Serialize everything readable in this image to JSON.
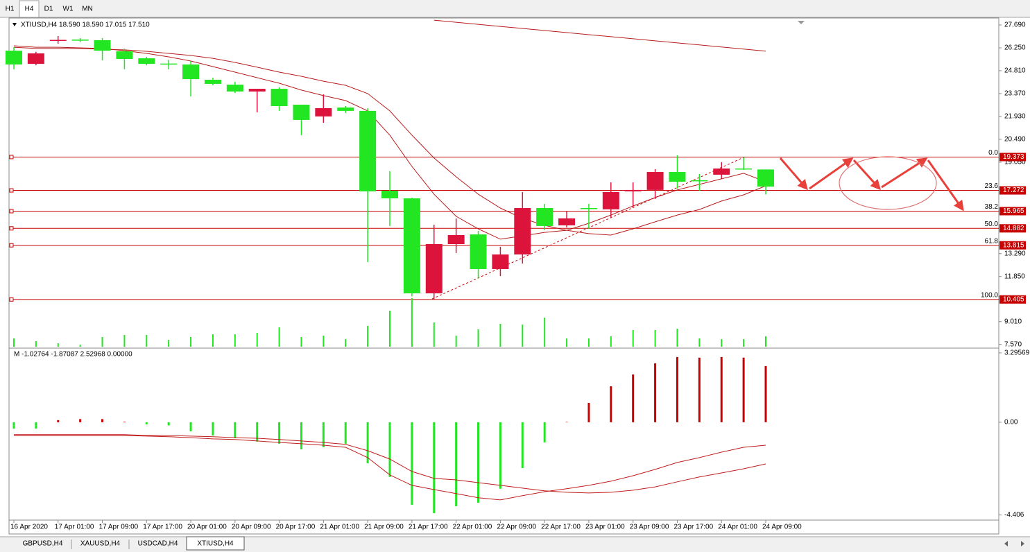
{
  "toolbar": {
    "timeframes": [
      "H1",
      "H4",
      "D1",
      "W1",
      "MN"
    ],
    "active": 1
  },
  "tabs": {
    "items": [
      "GBPUSD,H4",
      "XAUUSD,H4",
      "USDCAD,H4",
      "XTIUSD,H4"
    ],
    "active": 3
  },
  "chart_data": [
    {
      "type": "candlestick",
      "title": "XTIUSD,H4  18.590 18.590 17.015 17.510",
      "categories": [
        "16 Apr 2020",
        null,
        "17 Apr 01:00",
        null,
        "17 Apr 09:00",
        null,
        "17 Apr 17:00",
        null,
        "20 Apr 01:00",
        null,
        "20 Apr 09:00",
        null,
        "20 Apr 17:00",
        null,
        "21 Apr 01:00",
        null,
        "21 Apr 09:00",
        null,
        "21 Apr 17:00",
        null,
        "22 Apr 01:00",
        null,
        "22 Apr 09:00",
        null,
        "22 Apr 17:00",
        null,
        "23 Apr 01:00",
        null,
        "23 Apr 09:00",
        null,
        "23 Apr 17:00",
        null,
        "24 Apr 01:00",
        null,
        "24 Apr 09:00"
      ],
      "open": [
        26.07,
        25.24,
        26.71,
        26.77,
        26.73,
        26.03,
        25.59,
        25.26,
        25.2,
        24.24,
        23.93,
        23.5,
        23.67,
        22.67,
        21.93,
        22.49,
        22.28,
        17.25,
        16.77,
        10.79,
        13.89,
        14.5,
        12.32,
        13.24,
        16.16,
        15.07,
        16.16,
        16.08,
        17.21,
        17.3,
        18.43,
        17.91,
        18.26,
        18.65,
        18.59
      ],
      "high": [
        26.29,
        26.0,
        26.99,
        26.86,
        26.86,
        26.2,
        25.68,
        25.5,
        25.42,
        24.37,
        24.11,
        23.67,
        23.76,
        22.67,
        23.32,
        22.58,
        22.45,
        18.48,
        16.81,
        15.11,
        15.5,
        14.72,
        13.72,
        17.17,
        16.42,
        15.94,
        16.42,
        17.78,
        17.78,
        18.61,
        19.48,
        18.3,
        19.05,
        19.37,
        18.59
      ],
      "low": [
        24.9,
        25.15,
        26.51,
        26.6,
        25.46,
        24.9,
        25.15,
        24.9,
        23.19,
        23.89,
        23.41,
        22.19,
        22.28,
        20.75,
        21.53,
        22.15,
        12.76,
        15.03,
        10.6,
        10.405,
        13.33,
        11.71,
        11.88,
        12.67,
        14.77,
        14.94,
        14.85,
        15.55,
        16.16,
        16.73,
        17.39,
        17.26,
        17.99,
        18.56,
        17.015
      ],
      "close": [
        25.2,
        25.9,
        26.75,
        26.7,
        26.07,
        25.55,
        25.24,
        25.2,
        24.28,
        23.98,
        23.5,
        23.67,
        22.58,
        21.71,
        22.45,
        22.28,
        17.21,
        16.77,
        10.79,
        13.89,
        14.46,
        12.32,
        13.24,
        16.16,
        15.03,
        15.51,
        16.12,
        17.17,
        17.3,
        18.43,
        17.82,
        17.87,
        18.65,
        18.61,
        17.51
      ],
      "bull_color": "#dc143c",
      "bear_color": "#22e622",
      "volume": [
        12,
        8,
        5,
        3,
        14,
        17,
        17,
        10,
        14,
        18,
        18,
        20,
        28,
        14,
        16,
        11,
        30,
        52,
        70,
        35,
        16,
        25,
        33,
        32,
        42,
        12,
        12,
        15,
        24,
        24,
        26,
        12,
        11,
        11,
        15
      ],
      "volume_color": "#22e622",
      "volume_ylim": [
        0,
        100
      ],
      "moving_averages": [
        {
          "color": "#b81c1c",
          "values": [
            26.38,
            26.29,
            26.29,
            26.25,
            26.21,
            26.07,
            25.9,
            25.68,
            25.42,
            25.07,
            24.72,
            24.37,
            24.02,
            23.59,
            23.24,
            22.93,
            22.28,
            20.75,
            18.78,
            17.03,
            15.64,
            14.85,
            14.2,
            14.41,
            14.63,
            14.76,
            15.2,
            15.72,
            16.29,
            16.82,
            17.3,
            17.65,
            18.0,
            18.35,
            17.82
          ]
        },
        {
          "color": "#b81c1c",
          "values": [
            26.29,
            26.21,
            26.21,
            26.21,
            26.16,
            26.12,
            26.03,
            25.9,
            25.77,
            25.59,
            25.33,
            25.03,
            24.72,
            24.46,
            24.15,
            23.89,
            23.37,
            22.28,
            20.75,
            19.31,
            18.13,
            17.03,
            16.16,
            15.51,
            15.07,
            14.76,
            14.55,
            14.46,
            14.85,
            15.29,
            15.72,
            16.07,
            16.6,
            16.99,
            17.56
          ]
        },
        {
          "color": "#b81c1c",
          "values": [
            null,
            null,
            null,
            null,
            null,
            null,
            null,
            null,
            null,
            null,
            null,
            null,
            null,
            null,
            null,
            null,
            null,
            null,
            null,
            27.99,
            27.86,
            27.73,
            27.6,
            27.47,
            27.34,
            27.21,
            27.08,
            26.95,
            26.82,
            26.69,
            26.56,
            26.43,
            26.3,
            26.17,
            26.04
          ]
        }
      ],
      "fibonacci": [
        {
          "label": "0.0",
          "value": 19.373
        },
        {
          "label": "23.6",
          "value": 17.272
        },
        {
          "label": "38.2",
          "value": 15.965
        },
        {
          "label": "50.0",
          "value": 14.882
        },
        {
          "label": "61.8",
          "value": 13.815
        },
        {
          "label": "100.0",
          "value": 10.405
        }
      ],
      "fib_color": "#c80000",
      "ylim": [
        7.34,
        28.17
      ],
      "yticks": [
        {
          "value": 27.69,
          "label": "27.690"
        },
        {
          "value": 26.25,
          "label": "26.250"
        },
        {
          "value": 24.81,
          "label": "24.810"
        },
        {
          "value": 23.37,
          "label": "23.370"
        },
        {
          "value": 21.93,
          "label": "21.930"
        },
        {
          "value": 20.49,
          "label": "20.490"
        },
        {
          "value": 19.05,
          "label": "19.050"
        },
        {
          "value": 13.29,
          "label": "13.290"
        },
        {
          "value": 11.85,
          "label": "11.850"
        },
        {
          "value": 9.01,
          "label": "9.010"
        },
        {
          "value": 7.57,
          "label": "7.570"
        }
      ]
    },
    {
      "type": "bar",
      "title": "M -1.02764 -1.87087 2.52968 0.00000",
      "values": [
        -0.3,
        -0.3,
        0.1,
        0.15,
        0.15,
        0.03,
        -0.1,
        -0.15,
        -0.43,
        -0.63,
        -0.76,
        -0.92,
        -1.02,
        -1.29,
        -1.19,
        -1.02,
        -1.95,
        -2.6,
        -3.92,
        -4.32,
        -3.99,
        -3.82,
        -3.16,
        -2.18,
        -0.96,
        0.02,
        0.92,
        1.71,
        2.27,
        2.8,
        3.1,
        3.07,
        3.1,
        3.07,
        2.67
      ],
      "positive_color": "#c80000",
      "negative_color": "#22e622",
      "lines": [
        {
          "color": "#c01c1c",
          "values": [
            -0.63,
            -0.63,
            -0.63,
            -0.63,
            -0.63,
            -0.63,
            -0.66,
            -0.69,
            -0.73,
            -0.79,
            -0.82,
            -0.89,
            -0.96,
            -1.02,
            -1.09,
            -1.19,
            -1.68,
            -2.5,
            -3.0,
            -3.2,
            -3.39,
            -3.59,
            -3.69,
            -3.49,
            -3.3,
            -3.16,
            -3.0,
            -2.8,
            -2.54,
            -2.24,
            -1.91,
            -1.68,
            -1.42,
            -1.19,
            -1.09
          ]
        },
        {
          "color": "#c01c1c",
          "values": [
            -0.59,
            -0.59,
            -0.59,
            -0.59,
            -0.59,
            -0.59,
            -0.63,
            -0.63,
            -0.66,
            -0.69,
            -0.73,
            -0.76,
            -0.82,
            -0.89,
            -0.96,
            -1.05,
            -1.35,
            -1.75,
            -2.34,
            -2.67,
            -2.74,
            -2.87,
            -3.0,
            -3.13,
            -3.26,
            -3.33,
            -3.36,
            -3.33,
            -3.23,
            -3.07,
            -2.83,
            -2.6,
            -2.41,
            -2.21,
            -1.98
          ]
        }
      ],
      "ylim": [
        -4.65,
        3.49
      ],
      "yticks": [
        3.29569,
        {
          "value": 0,
          "label": "0.00"
        },
        -4.406
      ]
    }
  ]
}
